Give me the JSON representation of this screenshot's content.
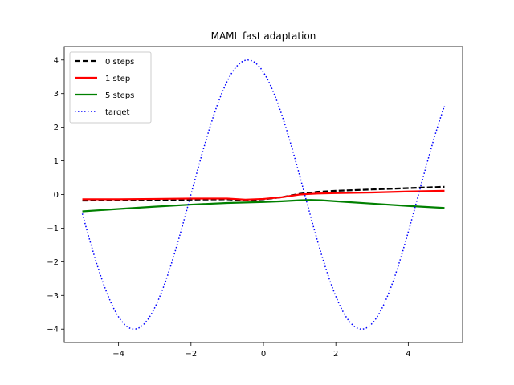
{
  "chart_data": {
    "type": "line",
    "title": "MAML fast adaptation",
    "xlabel": "",
    "ylabel": "",
    "xlim": [
      -5.5,
      5.5
    ],
    "ylim": [
      -4.4,
      4.4
    ],
    "xticks": [
      -4,
      -2,
      0,
      2,
      4
    ],
    "yticks": [
      -4,
      -3,
      -2,
      -1,
      0,
      1,
      2,
      3,
      4
    ],
    "grid": false,
    "legend_position": "top-left",
    "series": [
      {
        "name": "0 steps",
        "color": "#000000",
        "style": "dashed",
        "x": [
          -5,
          -4,
          -3,
          -2,
          -1,
          -0.5,
          0,
          0.5,
          1,
          1.5,
          2,
          3,
          4,
          5
        ],
        "y": [
          -0.18,
          -0.17,
          -0.16,
          -0.15,
          -0.14,
          -0.17,
          -0.14,
          -0.08,
          0.02,
          0.08,
          0.11,
          0.15,
          0.19,
          0.23
        ]
      },
      {
        "name": "1 step",
        "color": "#ff0000",
        "style": "solid",
        "x": [
          -5,
          -4,
          -3,
          -2,
          -1,
          -0.5,
          0,
          0.5,
          1,
          1.5,
          2,
          3,
          4,
          5
        ],
        "y": [
          -0.14,
          -0.14,
          -0.13,
          -0.12,
          -0.12,
          -0.15,
          -0.13,
          -0.08,
          0.0,
          0.03,
          0.04,
          0.06,
          0.09,
          0.11
        ]
      },
      {
        "name": "5 steps",
        "color": "#008000",
        "style": "solid",
        "x": [
          -5,
          -4,
          -3,
          -2,
          -1,
          0,
          0.5,
          1,
          1.3,
          1.6,
          2,
          3,
          4,
          5
        ],
        "y": [
          -0.5,
          -0.43,
          -0.36,
          -0.3,
          -0.25,
          -0.22,
          -0.2,
          -0.17,
          -0.16,
          -0.17,
          -0.2,
          -0.27,
          -0.34,
          -0.4
        ]
      },
      {
        "name": "target",
        "color": "#0000ff",
        "style": "dotted",
        "function": {
          "amplitude": 4.0,
          "frequency": 1.0,
          "peak_x": -0.43
        },
        "x_range": [
          -5,
          5
        ]
      }
    ]
  }
}
